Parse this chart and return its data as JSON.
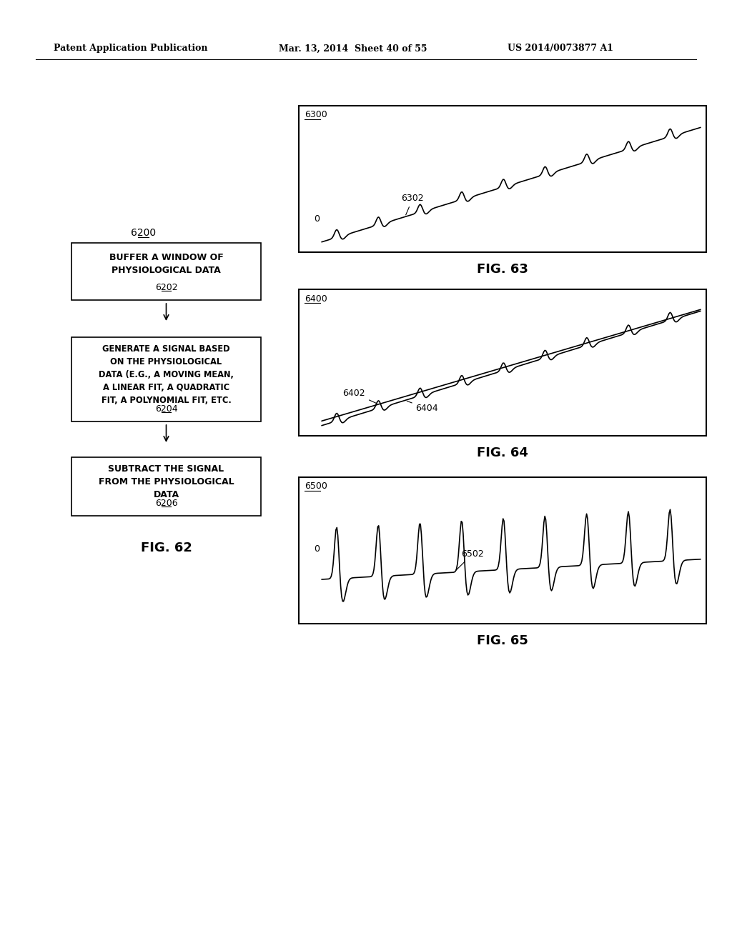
{
  "header_left": "Patent Application Publication",
  "header_mid": "Mar. 13, 2014  Sheet 40 of 55",
  "header_right": "US 2014/0073877 A1",
  "box1_label": "6200",
  "box1_text_lines": [
    "BUFFER A WINDOW OF",
    "PHYSIOLOGICAL DATA"
  ],
  "box1_sub": "6202",
  "box2_text_lines": [
    "GENERATE A SIGNAL BASED",
    "ON THE PHYSIOLOGICAL",
    "DATA (E.G., A MOVING MEAN,",
    "A LINEAR FIT, A QUADRATIC",
    "FIT, A POLYNOMIAL FIT, ETC."
  ],
  "box2_sub": "6204",
  "box3_text_lines": [
    "SUBTRACT THE SIGNAL",
    "FROM THE PHYSIOLOGICAL",
    "DATA"
  ],
  "box3_sub": "6206",
  "fig62_label": "FIG. 62",
  "fig63_label": "FIG. 63",
  "fig64_label": "FIG. 64",
  "fig65_label": "FIG. 65",
  "chart63_label": "6300",
  "chart63_curve_label": "6302",
  "chart64_label": "6400",
  "chart64_curve1_label": "6402",
  "chart64_curve2_label": "6404",
  "chart65_label": "6500",
  "chart65_curve_label": "6502",
  "bg_color": "#ffffff",
  "line_color": "#000000"
}
